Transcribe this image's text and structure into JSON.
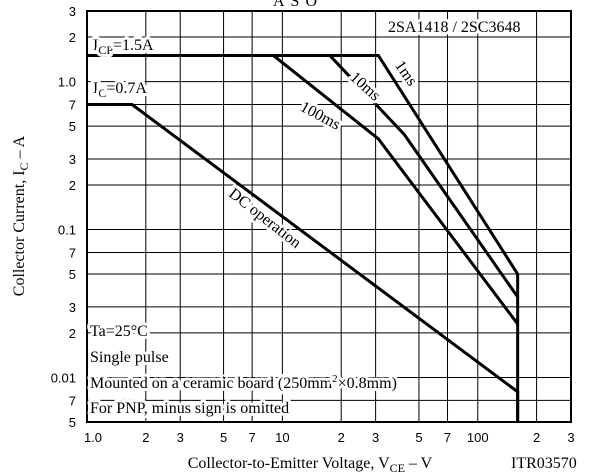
{
  "chart_data": {
    "type": "line",
    "title": "ASO",
    "log_x": true,
    "log_y": true,
    "grid": true,
    "xlim": [
      1,
      300
    ],
    "ylim": [
      0.005,
      3
    ],
    "xticks": [
      {
        "value": 1,
        "label": "1.0"
      },
      2,
      3,
      5,
      7,
      10,
      {
        "value": 20,
        "label": "2"
      },
      {
        "value": 30,
        "label": "3"
      },
      {
        "value": 50,
        "label": "5"
      },
      {
        "value": 70,
        "label": "7"
      },
      100,
      {
        "value": 200,
        "label": "2"
      },
      {
        "value": 300,
        "label": "3"
      }
    ],
    "yticks": [
      3,
      2,
      {
        "value": 1,
        "label": "1.0"
      },
      {
        "value": 0.7,
        "label": "7"
      },
      {
        "value": 0.5,
        "label": "5"
      },
      {
        "value": 0.3,
        "label": "3"
      },
      {
        "value": 0.2,
        "label": "2"
      },
      0.1,
      {
        "value": 0.07,
        "label": "7"
      },
      {
        "value": 0.05,
        "label": "5"
      },
      {
        "value": 0.03,
        "label": "3"
      },
      {
        "value": 0.02,
        "label": "2"
      },
      0.01,
      {
        "value": 0.007,
        "label": "7"
      },
      {
        "value": 0.005,
        "label": "5"
      }
    ],
    "x_label": [
      "Collector-to-Emitter Voltage, V",
      "CE",
      "  –  V"
    ],
    "y_label": [
      "Collector Current, I",
      "C",
      "  –  A"
    ],
    "series": [
      {
        "name": "DC operation",
        "color": "#000000",
        "x": [
          1,
          1.7,
          160,
          160
        ],
        "values": [
          0.7,
          0.7,
          0.008,
          0.005
        ]
      },
      {
        "name": "100ms",
        "color": "#000000",
        "x": [
          1,
          9,
          31,
          160
        ],
        "values": [
          1.5,
          1.5,
          0.41,
          0.023
        ]
      },
      {
        "name": "10ms",
        "color": "#000000",
        "x": [
          1,
          17.5,
          42,
          160
        ],
        "values": [
          1.5,
          1.5,
          0.44,
          0.035
        ]
      },
      {
        "name": "1ms",
        "color": "#000000",
        "x": [
          1,
          31,
          160,
          160
        ],
        "values": [
          1.5,
          1.5,
          0.05,
          0.005
        ]
      }
    ],
    "annotations": {
      "icp": [
        "I",
        "CP",
        "=1.5A"
      ],
      "ic": [
        "I",
        "C",
        "=0.7A"
      ],
      "model": "2SA1418 / 2SC3648",
      "conditions": [
        "Ta=25°C",
        "Single pulse",
        [
          "Mounted on a ceramic board (250mm",
          "2",
          "×0.8mm)"
        ],
        "For PNP, minus sign is omitted"
      ],
      "code": "ITR03570"
    }
  }
}
